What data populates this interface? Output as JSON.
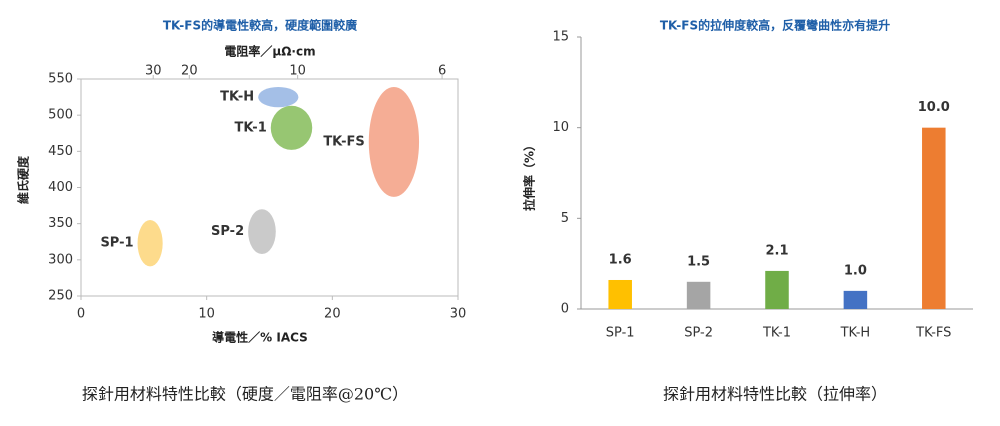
{
  "chart_data": [
    {
      "type": "ellipse",
      "title": "TK-FS的導電性較高，硬度範圍較廣",
      "x2label": "電阻率／μΩ·cm",
      "xlabel": "導電性／% IACS",
      "ylabel": "維氏硬度",
      "caption": "探針用材料特性比較（硬度／電阻率@20℃）",
      "xlim": [
        0,
        30
      ],
      "xticks": [
        0,
        10,
        20,
        30
      ],
      "ylim": [
        250,
        550
      ],
      "yticks": [
        250,
        300,
        350,
        400,
        450,
        500,
        550
      ],
      "x2ticks": [
        30,
        20,
        10,
        6
      ],
      "series": [
        {
          "name": "SP-1",
          "color": "#fdd77f",
          "label_color": "#f2b600",
          "x": [
            4.5,
            6.5
          ],
          "y": [
            291,
            355
          ]
        },
        {
          "name": "SP-2",
          "color": "#c4c4c4",
          "label_color": "#7f7f7f",
          "x": [
            13.3,
            15.5
          ],
          "y": [
            308,
            370
          ]
        },
        {
          "name": "TK-1",
          "color": "#8cc063",
          "label_color": "#5a9a2f",
          "x": [
            15.1,
            18.4
          ],
          "y": [
            452,
            513
          ]
        },
        {
          "name": "TK-H",
          "color": "#9ab8e4",
          "label_color": "#4f86c6",
          "x": [
            14.1,
            17.3
          ],
          "y": [
            511,
            539
          ]
        },
        {
          "name": "TK-FS",
          "color": "#f4a48a",
          "label_color": "#e0702f",
          "x": [
            22.9,
            26.9
          ],
          "y": [
            387,
            539
          ]
        }
      ]
    },
    {
      "type": "bar",
      "title": "TK-FS的拉伸度較高，反覆彎曲性亦有提升",
      "ylabel": "拉伸率（%）",
      "caption": "探針用材料特性比較（拉伸率）",
      "categories": [
        "SP-1",
        "SP-2",
        "TK-1",
        "TK-H",
        "TK-FS"
      ],
      "values": [
        1.6,
        1.5,
        2.1,
        1.0,
        10.0
      ],
      "value_labels": [
        "1.6",
        "1.5",
        "2.1",
        "1.0",
        "10.0"
      ],
      "colors": [
        "#ffc000",
        "#a5a5a5",
        "#70ad47",
        "#4472c4",
        "#ed7d31"
      ],
      "ylim": [
        0,
        15
      ],
      "yticks": [
        0,
        5,
        10,
        15
      ]
    }
  ]
}
